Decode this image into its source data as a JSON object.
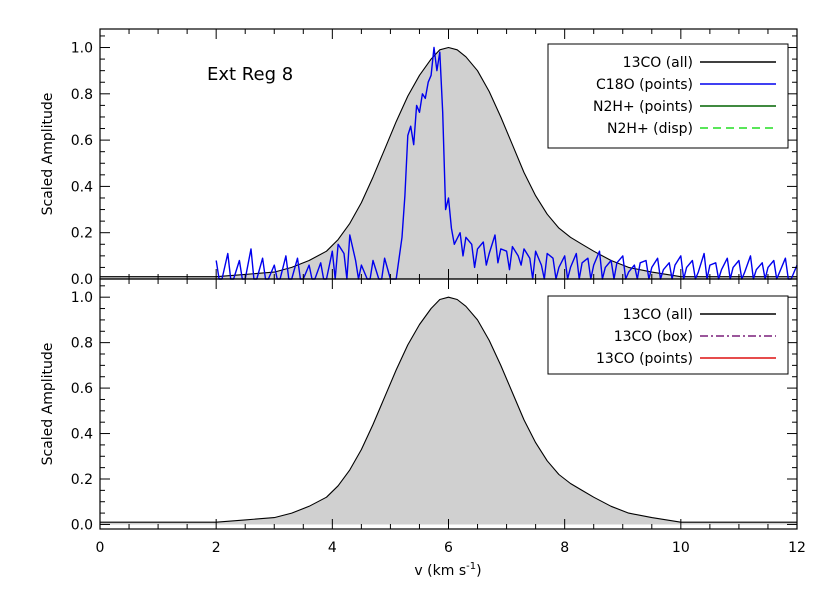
{
  "chart_data": [
    {
      "type": "area",
      "panel": "top",
      "annotation": "Ext Reg  8",
      "ylabel": "Scaled Amplitude",
      "xlabel": "",
      "xlim": [
        0,
        12
      ],
      "ylim": [
        0,
        1.08
      ],
      "xticks": [
        "0",
        "2",
        "4",
        "6",
        "8",
        "10",
        "12"
      ],
      "yticks": [
        "0.0",
        "0.2",
        "0.4",
        "0.6",
        "0.8",
        "1.0"
      ],
      "legend_position": "top-right",
      "legend": [
        {
          "label": "13CO (all)",
          "color": "#000000",
          "style": "solid"
        },
        {
          "label": "C18O (points)",
          "color": "#0000ee",
          "style": "solid"
        },
        {
          "label": "N2H+ (points)",
          "color": "#006400",
          "style": "solid"
        },
        {
          "label": "N2H+ (disp)",
          "color": "#22dd22",
          "style": "dashed"
        }
      ],
      "series": [
        {
          "name": "13CO (all)",
          "color": "#000000",
          "fill": "#d0d0d0",
          "x": [
            0.0,
            0.5,
            1.0,
            1.5,
            2.0,
            2.5,
            3.0,
            3.3,
            3.6,
            3.9,
            4.1,
            4.3,
            4.5,
            4.7,
            4.9,
            5.1,
            5.3,
            5.5,
            5.7,
            5.85,
            6.0,
            6.15,
            6.3,
            6.5,
            6.7,
            6.9,
            7.1,
            7.3,
            7.5,
            7.7,
            7.9,
            8.1,
            8.3,
            8.5,
            8.8,
            9.1,
            9.5,
            10.0,
            10.5,
            11.0,
            11.5,
            12.0
          ],
          "y": [
            0.01,
            0.01,
            0.01,
            0.01,
            0.01,
            0.02,
            0.03,
            0.05,
            0.08,
            0.12,
            0.17,
            0.24,
            0.33,
            0.44,
            0.56,
            0.68,
            0.79,
            0.88,
            0.95,
            0.99,
            1.0,
            0.99,
            0.96,
            0.9,
            0.81,
            0.7,
            0.58,
            0.46,
            0.36,
            0.28,
            0.22,
            0.18,
            0.15,
            0.12,
            0.08,
            0.05,
            0.03,
            0.01,
            0.01,
            0.01,
            0.01,
            0.01
          ]
        },
        {
          "name": "C18O (points)",
          "color": "#0000ee",
          "x": [
            2.0,
            2.05,
            2.1,
            2.2,
            2.25,
            2.3,
            2.4,
            2.45,
            2.5,
            2.6,
            2.65,
            2.7,
            2.8,
            2.85,
            2.9,
            3.0,
            3.05,
            3.1,
            3.2,
            3.25,
            3.3,
            3.4,
            3.45,
            3.5,
            3.6,
            3.65,
            3.7,
            3.8,
            3.85,
            3.9,
            4.0,
            4.05,
            4.1,
            4.2,
            4.25,
            4.3,
            4.4,
            4.45,
            4.5,
            4.6,
            4.65,
            4.7,
            4.8,
            4.85,
            4.9,
            5.0,
            5.1,
            5.2,
            5.25,
            5.3,
            5.35,
            5.4,
            5.45,
            5.5,
            5.55,
            5.6,
            5.65,
            5.7,
            5.75,
            5.8,
            5.85,
            5.9,
            5.95,
            6.0,
            6.05,
            6.1,
            6.2,
            6.25,
            6.3,
            6.4,
            6.45,
            6.5,
            6.6,
            6.65,
            6.7,
            6.8,
            6.85,
            6.9,
            7.0,
            7.05,
            7.1,
            7.2,
            7.25,
            7.3,
            7.4,
            7.45,
            7.5,
            7.6,
            7.65,
            7.7,
            7.8,
            7.85,
            7.9,
            8.0,
            8.05,
            8.1,
            8.2,
            8.25,
            8.3,
            8.4,
            8.45,
            8.5,
            8.6,
            8.65,
            8.7,
            8.8,
            8.85,
            8.9,
            9.0,
            9.05,
            9.1,
            9.2,
            9.25,
            9.3,
            9.4,
            9.45,
            9.5,
            9.6,
            9.65,
            9.7,
            9.8,
            9.85,
            9.9,
            10.0,
            10.05,
            10.1,
            10.2,
            10.25,
            10.3,
            10.4,
            10.45,
            10.5,
            10.6,
            10.65,
            10.7,
            10.8,
            10.85,
            10.9,
            11.0,
            11.05,
            11.1,
            11.2,
            11.25,
            11.3,
            11.4,
            11.45,
            11.5,
            11.6,
            11.65,
            11.7,
            11.8,
            11.85,
            11.9,
            12.0
          ],
          "y": [
            0.08,
            0.0,
            0.0,
            0.11,
            0.0,
            0.0,
            0.08,
            0.0,
            0.0,
            0.13,
            0.0,
            0.0,
            0.09,
            0.0,
            0.0,
            0.06,
            0.0,
            0.0,
            0.1,
            0.0,
            0.0,
            0.09,
            0.0,
            0.0,
            0.06,
            0.0,
            0.0,
            0.07,
            0.0,
            0.0,
            0.12,
            0.0,
            0.15,
            0.11,
            0.0,
            0.19,
            0.08,
            0.0,
            0.06,
            0.0,
            0.0,
            0.08,
            0.0,
            0.0,
            0.09,
            0.0,
            0.0,
            0.18,
            0.36,
            0.62,
            0.66,
            0.58,
            0.75,
            0.72,
            0.8,
            0.78,
            0.85,
            0.88,
            1.0,
            0.9,
            0.98,
            0.72,
            0.3,
            0.35,
            0.22,
            0.15,
            0.2,
            0.1,
            0.18,
            0.15,
            0.05,
            0.13,
            0.16,
            0.06,
            0.11,
            0.19,
            0.07,
            0.13,
            0.12,
            0.04,
            0.14,
            0.1,
            0.06,
            0.13,
            0.09,
            0.0,
            0.12,
            0.06,
            0.0,
            0.11,
            0.09,
            0.0,
            0.05,
            0.1,
            0.0,
            0.05,
            0.11,
            0.0,
            0.07,
            0.09,
            0.0,
            0.06,
            0.12,
            0.0,
            0.05,
            0.08,
            0.0,
            0.07,
            0.1,
            0.0,
            0.03,
            0.06,
            0.0,
            0.07,
            0.08,
            0.0,
            0.05,
            0.09,
            0.0,
            0.04,
            0.07,
            0.0,
            0.06,
            0.1,
            0.0,
            0.05,
            0.08,
            0.0,
            0.03,
            0.11,
            0.0,
            0.06,
            0.07,
            0.0,
            0.04,
            0.09,
            0.0,
            0.05,
            0.08,
            0.0,
            0.03,
            0.1,
            0.0,
            0.04,
            0.07,
            0.0,
            0.05,
            0.08,
            0.0,
            0.03,
            0.09,
            0.0,
            0.0,
            0.06
          ]
        }
      ]
    },
    {
      "type": "area",
      "panel": "bottom",
      "ylabel": "Scaled Amplitude",
      "xlabel": "v (km s",
      "xlabel_sup": "-1",
      "xlabel_tail": ")",
      "xlim": [
        0,
        12
      ],
      "ylim": [
        -0.02,
        1.08
      ],
      "xticks": [
        "0",
        "2",
        "4",
        "6",
        "8",
        "10",
        "12"
      ],
      "yticks": [
        "0.0",
        "0.2",
        "0.4",
        "0.6",
        "0.8",
        "1.0"
      ],
      "legend_position": "top-right",
      "legend": [
        {
          "label": "13CO (all)",
          "color": "#000000",
          "style": "solid"
        },
        {
          "label": "13CO (box)",
          "color": "#7a1f7a",
          "style": "dashdot"
        },
        {
          "label": "13CO (points)",
          "color": "#dd1111",
          "style": "solid"
        }
      ],
      "series": [
        {
          "name": "13CO (all)",
          "color": "#000000",
          "fill": "#d0d0d0",
          "x": [
            0.0,
            0.5,
            1.0,
            1.5,
            2.0,
            2.5,
            3.0,
            3.3,
            3.6,
            3.9,
            4.1,
            4.3,
            4.5,
            4.7,
            4.9,
            5.1,
            5.3,
            5.5,
            5.7,
            5.85,
            6.0,
            6.15,
            6.3,
            6.5,
            6.7,
            6.9,
            7.1,
            7.3,
            7.5,
            7.7,
            7.9,
            8.1,
            8.3,
            8.5,
            8.8,
            9.1,
            9.5,
            10.0,
            10.5,
            11.0,
            11.5,
            12.0
          ],
          "y": [
            0.01,
            0.01,
            0.01,
            0.01,
            0.01,
            0.02,
            0.03,
            0.05,
            0.08,
            0.12,
            0.17,
            0.24,
            0.33,
            0.44,
            0.56,
            0.68,
            0.79,
            0.88,
            0.95,
            0.99,
            1.0,
            0.99,
            0.96,
            0.9,
            0.81,
            0.7,
            0.58,
            0.46,
            0.36,
            0.28,
            0.22,
            0.18,
            0.15,
            0.12,
            0.08,
            0.05,
            0.03,
            0.01,
            0.01,
            0.01,
            0.01,
            0.01
          ]
        }
      ]
    }
  ]
}
